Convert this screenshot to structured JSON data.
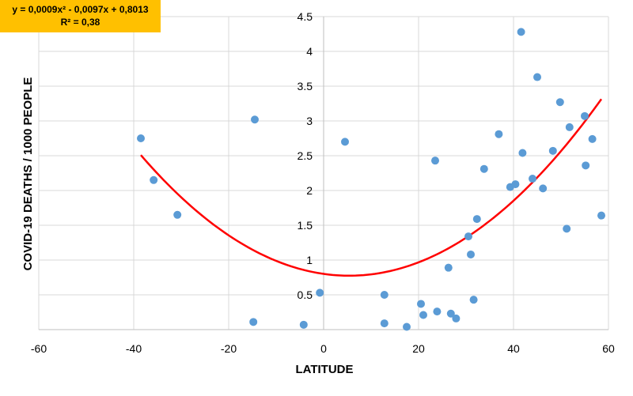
{
  "equation_box": {
    "line1": "y = 0,0009x² - 0,0097x + 0,8013",
    "line2": "R² = 0,38"
  },
  "colors": {
    "points": "#5b9bd5",
    "trendline": "#ff0000",
    "grid": "#d9d9d9",
    "equation_bg": "#ffc000"
  },
  "chart_data": {
    "type": "scatter",
    "title": "",
    "xlabel": "LATITUDE",
    "ylabel": "COVID-19 DEATHS / 1000 PEOPLE",
    "xlim": [
      -60,
      60
    ],
    "ylim": [
      0,
      4.5
    ],
    "xticks": [
      "-60",
      "-40",
      "-20",
      "0",
      "20",
      "40",
      "60"
    ],
    "yticks": [
      "0.5",
      "1",
      "1.5",
      "2",
      "2.5",
      "3",
      "3.5",
      "4",
      "4.5"
    ],
    "grid": true,
    "trendline": {
      "type": "polynomial",
      "coefficients": [
        0.0009,
        -0.0097,
        0.8013
      ],
      "x_range": [
        -38.5,
        58.5
      ],
      "equation": "y = 0,0009x² - 0,0097x + 0,8013",
      "r_squared": "R² = 0,38"
    },
    "points": [
      {
        "x": -38.5,
        "y": 2.75
      },
      {
        "x": -35.8,
        "y": 2.15
      },
      {
        "x": -30.8,
        "y": 1.65
      },
      {
        "x": -14.5,
        "y": 3.02
      },
      {
        "x": -14.8,
        "y": 0.11
      },
      {
        "x": -4.2,
        "y": 0.07
      },
      {
        "x": -0.8,
        "y": 0.53
      },
      {
        "x": 4.5,
        "y": 2.7
      },
      {
        "x": 12.8,
        "y": 0.5
      },
      {
        "x": 12.8,
        "y": 0.09
      },
      {
        "x": 17.5,
        "y": 0.04
      },
      {
        "x": 20.5,
        "y": 0.37
      },
      {
        "x": 21.0,
        "y": 0.21
      },
      {
        "x": 23.5,
        "y": 2.43
      },
      {
        "x": 23.9,
        "y": 0.26
      },
      {
        "x": 26.3,
        "y": 0.89
      },
      {
        "x": 26.8,
        "y": 0.23
      },
      {
        "x": 27.9,
        "y": 0.16
      },
      {
        "x": 30.5,
        "y": 1.34
      },
      {
        "x": 31.0,
        "y": 1.08
      },
      {
        "x": 31.6,
        "y": 0.43
      },
      {
        "x": 32.3,
        "y": 1.59
      },
      {
        "x": 33.8,
        "y": 2.31
      },
      {
        "x": 36.9,
        "y": 2.81
      },
      {
        "x": 39.3,
        "y": 2.05
      },
      {
        "x": 40.4,
        "y": 2.09
      },
      {
        "x": 41.6,
        "y": 4.28
      },
      {
        "x": 41.9,
        "y": 2.54
      },
      {
        "x": 44.0,
        "y": 2.17
      },
      {
        "x": 45.0,
        "y": 3.63
      },
      {
        "x": 46.2,
        "y": 2.03
      },
      {
        "x": 48.3,
        "y": 2.57
      },
      {
        "x": 49.8,
        "y": 3.27
      },
      {
        "x": 51.2,
        "y": 1.45
      },
      {
        "x": 51.8,
        "y": 2.91
      },
      {
        "x": 55.0,
        "y": 3.07
      },
      {
        "x": 55.2,
        "y": 2.36
      },
      {
        "x": 56.6,
        "y": 2.74
      },
      {
        "x": 58.5,
        "y": 1.64
      }
    ]
  }
}
